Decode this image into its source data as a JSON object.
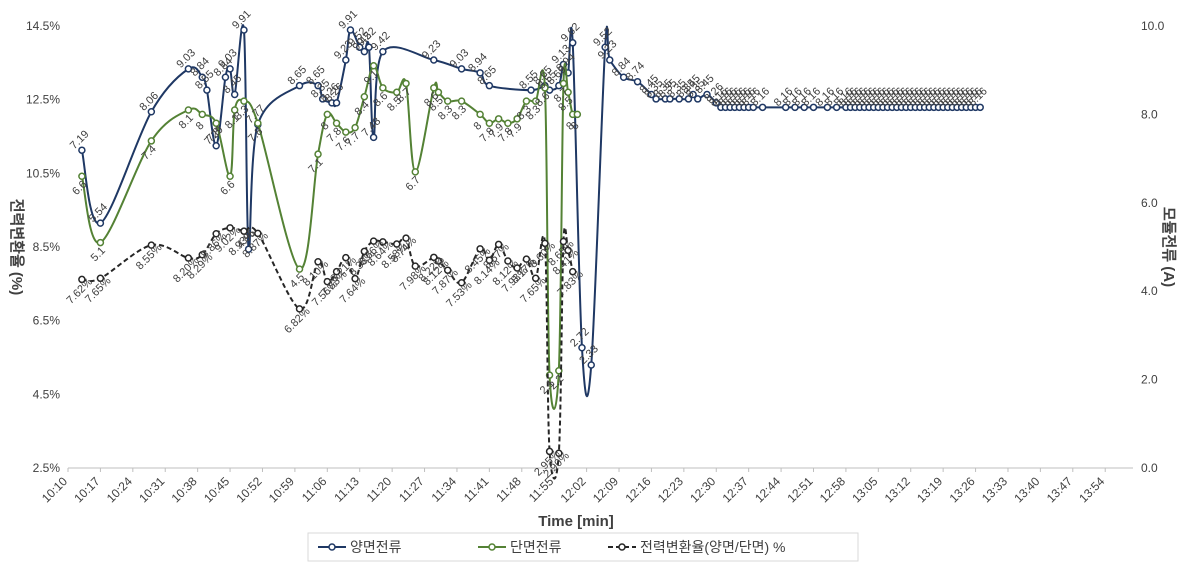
{
  "chart_data": {
    "type": "line",
    "xlabel": "Time  [min]",
    "ylabel_left": "전력변환율 (%)",
    "ylabel_right": "모듈전류 (A)",
    "ylim_left": [
      2.5,
      14.5
    ],
    "yticks_left": [
      "2.5%",
      "4.5%",
      "6.5%",
      "8.5%",
      "10.5%",
      "12.5%",
      "14.5%"
    ],
    "ylim_right": [
      0,
      10
    ],
    "yticks_right": [
      "0.0",
      "2.0",
      "4.0",
      "6.0",
      "8.0",
      "10.0"
    ],
    "xlim_min": [
      608,
      838
    ],
    "x_tick_labels": [
      "10:10",
      "10:17",
      "10:24",
      "10:31",
      "10:38",
      "10:45",
      "10:52",
      "10:59",
      "11:06",
      "11:13",
      "11:20",
      "11:27",
      "11:34",
      "11:41",
      "11:48",
      "11:55",
      "12:02",
      "12:09",
      "12:16",
      "12:23",
      "12:30",
      "12:37",
      "12:44",
      "12:51",
      "12:58",
      "13:05",
      "13:12",
      "13:19",
      "13:26",
      "13:33",
      "13:40",
      "13:47",
      "13:54"
    ],
    "legend_position": "bottom",
    "grid": false,
    "colors": {
      "double": "#1f3864",
      "single": "#548235",
      "ratio": "#262626"
    },
    "series": [
      {
        "name": "양면전류",
        "axis": "right",
        "x": [
          611,
          615,
          626,
          634,
          637,
          638,
          640,
          642,
          643,
          644,
          646,
          647,
          649,
          658,
          662,
          663,
          665,
          666,
          668,
          669,
          671,
          672,
          673,
          674,
          676,
          687,
          693,
          697,
          699,
          708,
          711,
          712,
          714,
          715,
          716,
          717,
          719,
          721,
          724,
          725,
          728,
          731,
          734,
          735,
          737,
          738,
          740,
          742,
          743,
          744,
          746,
          748,
          749,
          750,
          751,
          752,
          753,
          754,
          755,
          756,
          758,
          763,
          765,
          767,
          769,
          772,
          774,
          776,
          777,
          778,
          779,
          780,
          781,
          782,
          783,
          784,
          785,
          786,
          787,
          788,
          789,
          790,
          791,
          792,
          793,
          794,
          795,
          796,
          797,
          798,
          799,
          800,
          801,
          802,
          803,
          804,
          805
        ],
        "y": [
          7.19,
          5.54,
          8.06,
          9.03,
          8.84,
          8.55,
          7.29,
          8.84,
          9.03,
          8.45,
          9.91,
          4.95,
          7.77,
          8.65,
          8.65,
          8.35,
          8.26,
          8.26,
          9.23,
          9.91,
          9.52,
          9.42,
          9.52,
          7.48,
          9.42,
          9.23,
          9.03,
          8.94,
          8.65,
          8.55,
          8.65,
          8.55,
          8.65,
          9.13,
          8.94,
          9.62,
          2.72,
          2.33,
          9.52,
          9.23,
          8.84,
          8.74,
          8.45,
          8.35,
          8.35,
          8.35,
          8.35,
          8.35,
          8.45,
          8.35,
          8.45,
          8.26,
          8.16,
          8.16,
          8.16,
          8.16,
          8.16,
          8.16,
          8.16,
          8.16,
          8.16,
          8.16,
          8.16,
          8.16,
          8.16,
          8.16,
          8.16,
          8.16,
          8.16,
          8.16,
          8.16,
          8.16,
          8.16,
          8.16,
          8.16,
          8.16,
          8.16,
          8.16,
          8.16,
          8.16,
          8.16,
          8.16,
          8.16,
          8.16,
          8.16,
          8.16,
          8.16,
          8.16,
          8.16,
          8.16,
          8.16,
          8.16,
          8.16,
          8.16,
          8.16,
          8.16,
          8.16
        ]
      },
      {
        "name": "단면전류",
        "axis": "right",
        "x": [
          611,
          615,
          626,
          634,
          637,
          640,
          643,
          644,
          646,
          649,
          658,
          662,
          664,
          666,
          668,
          670,
          672,
          674,
          676,
          679,
          681,
          683,
          687,
          688,
          690,
          693,
          697,
          699,
          701,
          703,
          705,
          707,
          709,
          711,
          712,
          714,
          715,
          716,
          717,
          718
        ],
        "y": [
          6.6,
          5.1,
          7.4,
          8.1,
          8.0,
          7.8,
          6.6,
          8.1,
          8.3,
          7.8,
          4.5,
          7.1,
          8.0,
          7.8,
          7.6,
          7.7,
          8.4,
          9.1,
          8.6,
          8.5,
          8.7,
          6.7,
          8.6,
          8.5,
          8.3,
          8.3,
          8.0,
          7.8,
          7.9,
          7.8,
          7.9,
          8.3,
          8.3,
          8.6,
          2.1,
          2.2,
          8.7,
          8.5,
          8.0,
          8.0
        ]
      },
      {
        "name": "전력변환율(양면/단면) %",
        "axis": "left",
        "x": [
          611,
          615,
          626,
          634,
          637,
          640,
          643,
          646,
          649,
          658,
          662,
          664,
          666,
          668,
          670,
          672,
          674,
          676,
          679,
          681,
          683,
          687,
          688,
          690,
          693,
          697,
          699,
          701,
          703,
          705,
          707,
          709,
          711,
          712,
          714,
          715,
          716,
          717
        ],
        "y": [
          7.62,
          7.65,
          8.55,
          8.2,
          8.29,
          8.86,
          9.02,
          8.93,
          8.87,
          6.82,
          8.1,
          7.56,
          7.83,
          8.21,
          7.64,
          8.38,
          8.66,
          8.64,
          8.58,
          8.74,
          7.98,
          8.22,
          8.12,
          7.87,
          7.53,
          8.45,
          8.14,
          8.57,
          8.12,
          7.93,
          8.17,
          7.65,
          8.6,
          2.95,
          2.9,
          8.65,
          8.41,
          7.83
        ]
      }
    ]
  },
  "legend": {
    "items": [
      "양면전류",
      "단면전류",
      "전력변환율(양면/단면) %"
    ]
  }
}
